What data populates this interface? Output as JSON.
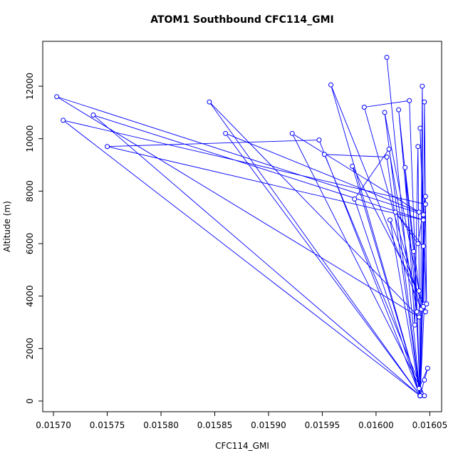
{
  "chart_data": {
    "type": "line",
    "title": "ATOM1 Southbound CFC114_GMI",
    "x_label": "CFC114_GMI",
    "y_label": "Altitude (m)",
    "color": "#0000ff",
    "markers": true,
    "xlim": [
      0.01569,
      0.016061
    ],
    "ylim": [
      -407,
      13711
    ],
    "xticks": [
      {
        "value": 0.0157,
        "label": "0.01570"
      },
      {
        "value": 0.01575,
        "label": "0.01575"
      },
      {
        "value": 0.0158,
        "label": "0.01580"
      },
      {
        "value": 0.01585,
        "label": "0.01585"
      },
      {
        "value": 0.0159,
        "label": "0.01590"
      },
      {
        "value": 0.01595,
        "label": "0.01595"
      },
      {
        "value": 0.016,
        "label": "0.01600"
      },
      {
        "value": 0.01605,
        "label": "0.01605"
      }
    ],
    "yticks": [
      0,
      2000,
      4000,
      6000,
      8000,
      10000,
      12000
    ],
    "series": [
      {
        "name": "CFC114_GMI",
        "x": [
          0.016041,
          0.016045,
          0.016048,
          0.01604,
          0.016041,
          0.01601,
          0.016041,
          0.016031,
          0.015989,
          0.016042,
          0.015958,
          0.016041,
          0.015845,
          0.01604,
          0.015703,
          0.016044,
          0.016041,
          0.015709,
          0.016046,
          0.016041,
          0.015737,
          0.016044,
          0.01575,
          0.015947,
          0.016041,
          0.01586,
          0.01604,
          0.015922,
          0.016045,
          0.015952,
          0.01601,
          0.016041,
          0.015978,
          0.016045,
          0.016041,
          0.01598,
          0.016012,
          0.016038,
          0.016021,
          0.016035,
          0.016041,
          0.016008,
          0.01604,
          0.016027,
          0.016036,
          0.016039,
          0.016041,
          0.016043,
          0.016044,
          0.016045,
          0.016047,
          0.016041,
          0.016046,
          0.016013,
          0.016041,
          0.016046,
          0.016039,
          0.016018,
          0.016044,
          0.016041
        ],
        "values": [
          200,
          800,
          1250,
          480,
          200,
          13100,
          200,
          11450,
          11200,
          3500,
          12050,
          200,
          11400,
          3200,
          11600,
          7100,
          200,
          10700,
          7500,
          200,
          10900,
          6900,
          9700,
          9950,
          200,
          10200,
          7200,
          10200,
          200,
          9400,
          9300,
          200,
          8950,
          3700,
          200,
          7700,
          9600,
          3400,
          11100,
          5700,
          200,
          11000,
          4200,
          8900,
          2900,
          9700,
          200,
          12000,
          3600,
          11400,
          3700,
          10400,
          3400,
          6900,
          200,
          7800,
          6000,
          7200,
          5900,
          200
        ]
      }
    ]
  }
}
